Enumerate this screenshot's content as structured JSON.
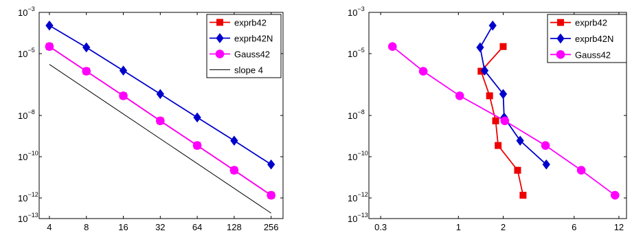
{
  "chart_data": [
    {
      "type": "line",
      "xscale": "log2",
      "yscale": "log",
      "xlim": [
        3.3,
        320
      ],
      "ylim": [
        1e-13,
        0.001
      ],
      "xticks": [
        "4",
        "8",
        "16",
        "32",
        "64",
        "128",
        "256"
      ],
      "xtick_values": [
        4,
        8,
        16,
        32,
        64,
        128,
        256
      ],
      "yticks": [
        {
          "base": "10",
          "exp": "−3",
          "value": 0.001
        },
        {
          "base": "10",
          "exp": "−5",
          "value": 1e-05
        },
        {
          "base": "10",
          "exp": "−8",
          "value": 1e-08
        },
        {
          "base": "10",
          "exp": "−10",
          "value": 1e-10
        },
        {
          "base": "10",
          "exp": "−12",
          "value": 1e-12
        },
        {
          "base": "10",
          "exp": "−13",
          "value": 1e-13
        }
      ],
      "grid": false,
      "legend_position": "top-right",
      "series": [
        {
          "name": "exprb42",
          "color": "#ee0000",
          "marker": "square",
          "x": [
            4,
            8,
            16,
            32,
            64,
            128,
            256
          ],
          "y": [
            2.2e-05,
            1.4e-06,
            9e-08,
            5.5e-09,
            3.5e-10,
            2.2e-11,
            1.35e-12
          ]
        },
        {
          "name": "exprb42N",
          "color": "#0000cc",
          "marker": "diamond",
          "x": [
            4,
            8,
            16,
            32,
            64,
            128,
            256
          ],
          "y": [
            0.00023,
            2e-05,
            1.5e-06,
            1.1e-07,
            8e-09,
            6e-10,
            4.2e-11
          ]
        },
        {
          "name": "Gauss42",
          "color": "#ff00ff",
          "marker": "circle",
          "x": [
            4,
            8,
            16,
            32,
            64,
            128,
            256
          ],
          "y": [
            2.2e-05,
            1.4e-06,
            9e-08,
            5.5e-09,
            3.5e-10,
            2.2e-11,
            1.35e-12
          ]
        },
        {
          "name": "slope 4",
          "color": "#000000",
          "marker": "none",
          "x": [
            4,
            256
          ],
          "y": [
            3e-06,
            1.83e-13
          ]
        }
      ]
    },
    {
      "type": "line",
      "xscale": "log",
      "yscale": "log",
      "xlim": [
        0.25,
        13.5
      ],
      "ylim": [
        1e-13,
        0.001
      ],
      "xticks": [
        "0.3",
        "1",
        "2",
        "6",
        "12"
      ],
      "xtick_values": [
        0.3,
        1,
        2,
        6,
        12
      ],
      "yticks": [
        {
          "base": "10",
          "exp": "−3",
          "value": 0.001
        },
        {
          "base": "10",
          "exp": "−5",
          "value": 1e-05
        },
        {
          "base": "10",
          "exp": "−8",
          "value": 1e-08
        },
        {
          "base": "10",
          "exp": "−10",
          "value": 1e-10
        },
        {
          "base": "10",
          "exp": "−12",
          "value": 1e-12
        },
        {
          "base": "10",
          "exp": "−13",
          "value": 1e-13
        }
      ],
      "grid": false,
      "legend_position": "top-right",
      "series": [
        {
          "name": "exprb42",
          "color": "#ee0000",
          "marker": "square",
          "x": [
            2.0,
            1.42,
            1.62,
            1.78,
            1.85,
            2.5,
            2.72
          ],
          "y": [
            2.2e-05,
            1.4e-06,
            9e-08,
            5.5e-09,
            3.5e-10,
            2.2e-11,
            1.35e-12
          ]
        },
        {
          "name": "exprb42N",
          "color": "#0000cc",
          "marker": "diamond",
          "x": [
            1.7,
            1.4,
            1.5,
            2.0,
            2.03,
            2.6,
            3.9
          ],
          "y": [
            0.00023,
            2e-05,
            1.5e-06,
            1.1e-07,
            8e-09,
            6e-10,
            4.2e-11
          ]
        },
        {
          "name": "Gauss42",
          "color": "#ff00ff",
          "marker": "circle",
          "x": [
            0.36,
            0.58,
            1.02,
            2.05,
            3.85,
            6.7,
            11.3
          ],
          "y": [
            2.2e-05,
            1.4e-06,
            9e-08,
            5.5e-09,
            3.5e-10,
            2.2e-11,
            1.35e-12
          ]
        }
      ]
    }
  ]
}
